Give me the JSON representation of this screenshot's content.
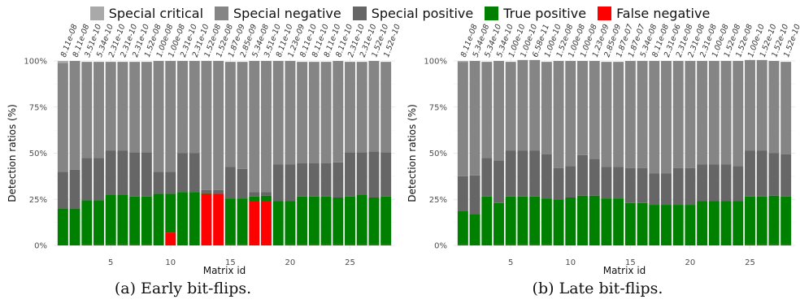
{
  "legend": [
    {
      "label": "Special critical",
      "color": "#a9a9a9"
    },
    {
      "label": "Special negative",
      "color": "#858585"
    },
    {
      "label": "Special positive",
      "color": "#666666"
    },
    {
      "label": "True positive",
      "color": "#008000"
    },
    {
      "label": "False negative",
      "color": "#ff0000"
    }
  ],
  "captions": {
    "a": "(a) Early bit-flips.",
    "b": "(b) Late bit-flips."
  },
  "chart_data": [
    {
      "type": "bar",
      "stacked": true,
      "xlabel": "Matrix id",
      "ylabel": "Detection ratios (%)",
      "ylim": [
        0,
        100
      ],
      "yticks": [
        "0%",
        "25%",
        "50%",
        "75%",
        "100%"
      ],
      "xticks": [
        5,
        10,
        15,
        20,
        25
      ],
      "x": [
        1,
        2,
        3,
        4,
        5,
        6,
        7,
        8,
        9,
        10,
        11,
        12,
        13,
        14,
        15,
        16,
        17,
        18,
        19,
        20,
        21,
        22,
        23,
        24,
        25,
        26,
        27,
        28
      ],
      "top_labels": [
        "8.11e-08",
        "8.11e-08",
        "3.51e-10",
        "5.34e-10",
        "2.31e-10",
        "2.31e-10",
        "2.31e-10",
        "1.52e-08",
        "1.00e-08",
        "1.00e-08",
        "2.31e-10",
        "2.31e-10",
        "1.52e-08",
        "1.52e-08",
        "1.87e-09",
        "2.85e-09",
        "5.34e-08",
        "3.51e-10",
        "8.11e-10",
        "1.23e-09",
        "8.11e-10",
        "8.11e-10",
        "8.11e-10",
        "8.11e-10",
        "2.31e-10",
        "2.31e-10",
        "1.52e-10",
        "1.52e-10"
      ],
      "series": [
        {
          "name": "False negative",
          "values": [
            0,
            0,
            0.5,
            0.5,
            0.5,
            0.5,
            0.5,
            0.5,
            0,
            7,
            0,
            0,
            28,
            28,
            0.5,
            0.5,
            24,
            24,
            0,
            0.5,
            0.5,
            0.5,
            0.5,
            0.5,
            0.5,
            0.5,
            0.5,
            0.5
          ]
        },
        {
          "name": "True positive",
          "values": [
            20,
            20,
            24,
            24,
            27,
            27,
            26,
            26,
            28,
            21,
            29,
            29,
            0.5,
            0,
            25,
            25,
            2.5,
            3,
            24,
            23.5,
            26,
            26,
            26,
            25.5,
            26,
            27,
            25.5,
            26
          ]
        },
        {
          "name": "Special positive",
          "values": [
            20,
            21,
            23,
            23,
            24,
            24,
            24,
            24,
            12,
            12,
            21,
            21,
            1.5,
            2,
            17,
            16,
            2.5,
            2,
            20,
            20,
            18,
            18,
            18,
            19,
            24,
            23,
            25,
            24
          ]
        },
        {
          "name": "Special negative",
          "values": [
            59,
            59,
            52,
            52,
            48,
            48,
            49,
            49,
            60,
            60,
            50,
            50,
            70,
            70,
            57,
            58,
            71,
            71,
            56,
            56,
            55,
            55,
            55,
            55,
            49,
            49,
            49,
            49
          ]
        },
        {
          "name": "Special critical",
          "values": [
            1,
            0,
            0,
            0,
            0,
            0,
            0,
            0,
            0,
            0,
            0,
            0,
            0,
            0,
            0,
            0,
            0,
            0,
            0,
            0,
            0,
            0,
            0,
            0,
            0,
            0,
            0,
            0
          ]
        }
      ]
    },
    {
      "type": "bar",
      "stacked": true,
      "xlabel": "Matrix id",
      "ylabel": "Detection ratios (%)",
      "ylim": [
        0,
        100
      ],
      "yticks": [
        "0%",
        "25%",
        "50%",
        "75%",
        "100%"
      ],
      "xticks": [
        5,
        10,
        15,
        20,
        25
      ],
      "x": [
        1,
        2,
        3,
        4,
        5,
        6,
        7,
        8,
        9,
        10,
        11,
        12,
        13,
        14,
        15,
        16,
        17,
        18,
        19,
        20,
        21,
        22,
        23,
        24,
        25,
        26,
        27,
        28
      ],
      "top_labels": [
        "8.11e-08",
        "5.34e-08",
        "5.34e-10",
        "5.34e-10",
        "1.00e-10",
        "1.00e-10",
        "6.58e-11",
        "1.00e-10",
        "1.52e-08",
        "1.00e-08",
        "1.00e-08",
        "1.23e-09",
        "2.85e-09",
        "1.87e-07",
        "1.87e-07",
        "5.34e-08",
        "8.11e-08",
        "2.31e-06",
        "2.31e-08",
        "2.31e-08",
        "2.31e-08",
        "1.00e-08",
        "1.52e-08",
        "1.52e-08",
        "1.00e-10",
        "1.52e-10",
        "1.52e-10",
        "1.52e-10"
      ],
      "series": [
        {
          "name": "False negative",
          "values": [
            0.5,
            0,
            0,
            0.5,
            0.5,
            0.5,
            0.5,
            0.5,
            0,
            0,
            0,
            0,
            0,
            0,
            0,
            0,
            0,
            0,
            0,
            0,
            0,
            0,
            0,
            0,
            0.5,
            0.5,
            0.5,
            0.5
          ]
        },
        {
          "name": "True positive",
          "values": [
            18,
            17,
            26.5,
            22.5,
            26,
            26,
            26,
            25,
            25,
            26,
            27,
            27,
            25.5,
            25.5,
            23,
            23,
            22,
            22,
            22,
            22,
            24,
            24,
            24,
            24,
            26,
            26,
            26.5,
            26
          ]
        },
        {
          "name": "Special positive",
          "values": [
            19,
            21,
            21,
            23,
            25,
            25,
            25,
            24,
            17,
            17,
            22,
            20,
            17,
            17,
            19,
            19,
            17,
            17,
            20,
            20,
            20,
            20,
            20,
            19,
            25,
            25,
            23,
            23
          ]
        },
        {
          "name": "Special negative",
          "values": [
            62,
            62,
            52,
            54,
            48,
            49,
            49,
            50,
            58,
            57,
            51,
            53,
            57,
            57,
            58,
            58,
            61,
            61,
            58,
            58,
            56,
            56,
            56,
            57,
            49,
            49,
            50,
            50
          ]
        },
        {
          "name": "Special critical",
          "values": [
            0.5,
            0,
            0,
            0,
            0,
            0,
            0,
            0,
            0,
            0,
            0,
            0,
            0,
            0,
            0,
            0,
            0,
            0,
            0,
            0,
            0,
            0,
            0,
            0,
            0,
            0,
            0,
            0
          ]
        }
      ]
    }
  ]
}
